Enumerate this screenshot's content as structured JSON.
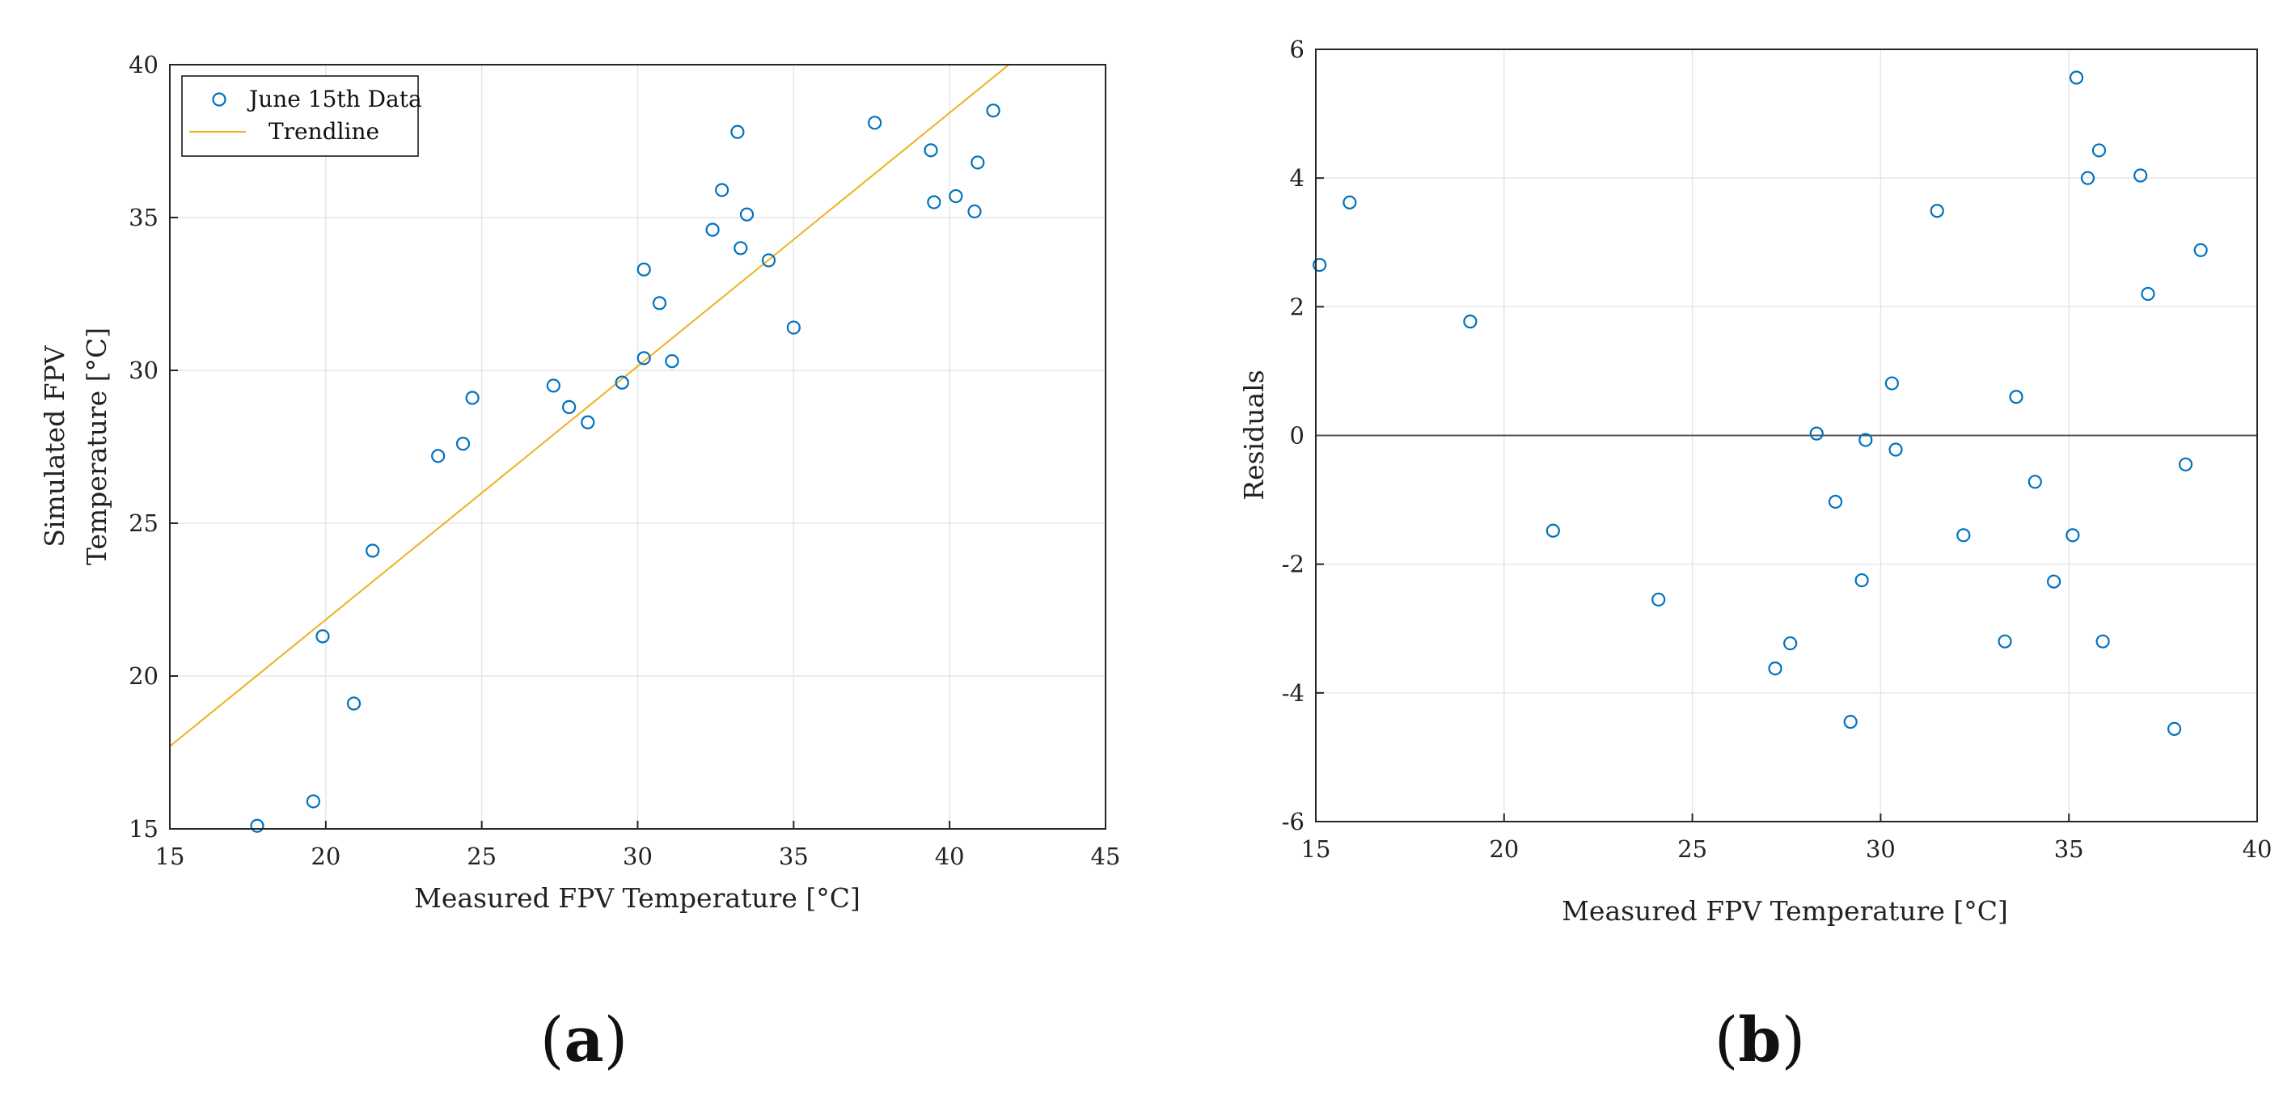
{
  "colors": {
    "marker": "#0072bd",
    "trendline": "#edb120",
    "zero_line": "#555555"
  },
  "chart_data": [
    {
      "type": "scatter",
      "panel_label": "a",
      "xlabel": "Measured FPV Temperature [°C]",
      "ylabel_lines": [
        "Simulated FPV",
        "Temperature [°C]"
      ],
      "xlim": [
        15,
        45
      ],
      "ylim": [
        15,
        40
      ],
      "xticks": [
        15,
        20,
        25,
        30,
        35,
        40,
        45
      ],
      "yticks": [
        15,
        20,
        25,
        30,
        35,
        40
      ],
      "grid": true,
      "legend_position": "top-left",
      "series": [
        {
          "name": "June 15th Data",
          "kind": "scatter",
          "points": [
            [
              17.8,
              15.1
            ],
            [
              19.6,
              15.9
            ],
            [
              19.9,
              21.3
            ],
            [
              20.9,
              19.1
            ],
            [
              21.5,
              24.1
            ],
            [
              23.6,
              27.2
            ],
            [
              24.4,
              27.6
            ],
            [
              24.7,
              29.1
            ],
            [
              27.3,
              29.5
            ],
            [
              27.8,
              28.8
            ],
            [
              28.4,
              28.3
            ],
            [
              29.5,
              29.6
            ],
            [
              30.2,
              33.3
            ],
            [
              30.2,
              30.4
            ],
            [
              30.7,
              32.2
            ],
            [
              31.1,
              30.3
            ],
            [
              32.4,
              34.6
            ],
            [
              32.7,
              35.9
            ],
            [
              33.2,
              37.8
            ],
            [
              33.3,
              34.0
            ],
            [
              33.5,
              35.1
            ],
            [
              34.2,
              33.6
            ],
            [
              35.0,
              31.4
            ],
            [
              37.6,
              38.1
            ],
            [
              39.4,
              37.2
            ],
            [
              39.5,
              35.5
            ],
            [
              40.2,
              35.7
            ],
            [
              40.8,
              35.2
            ],
            [
              40.9,
              36.8
            ],
            [
              41.4,
              38.5
            ]
          ]
        },
        {
          "name": "Trendline",
          "kind": "line",
          "points": [
            [
              15,
              17.7
            ],
            [
              41.9,
              40
            ]
          ]
        }
      ]
    },
    {
      "type": "scatter",
      "panel_label": "b",
      "xlabel": "Measured FPV Temperature [°C]",
      "ylabel": "Residuals",
      "xlim": [
        15,
        40
      ],
      "ylim": [
        -6,
        6
      ],
      "xticks": [
        15,
        20,
        25,
        30,
        35,
        40
      ],
      "yticks": [
        -6,
        -4,
        -2,
        0,
        2,
        4,
        6
      ],
      "grid": true,
      "zero_line": 0,
      "series": [
        {
          "name": "Residuals",
          "kind": "scatter",
          "points": [
            [
              15.1,
              2.65
            ],
            [
              15.9,
              3.62
            ],
            [
              19.1,
              1.77
            ],
            [
              21.3,
              -1.48
            ],
            [
              24.1,
              -2.55
            ],
            [
              27.2,
              -3.62
            ],
            [
              27.6,
              -3.23
            ],
            [
              28.3,
              0.03
            ],
            [
              28.8,
              -1.03
            ],
            [
              29.2,
              -4.45
            ],
            [
              29.5,
              -2.25
            ],
            [
              29.6,
              -0.07
            ],
            [
              30.3,
              0.81
            ],
            [
              30.4,
              -0.22
            ],
            [
              31.5,
              3.49
            ],
            [
              32.2,
              -1.55
            ],
            [
              33.3,
              -3.2
            ],
            [
              33.6,
              0.6
            ],
            [
              34.1,
              -0.72
            ],
            [
              34.6,
              -2.27
            ],
            [
              35.1,
              -1.55
            ],
            [
              35.2,
              5.56
            ],
            [
              35.5,
              4.0
            ],
            [
              35.8,
              4.43
            ],
            [
              35.9,
              -3.2
            ],
            [
              36.9,
              4.04
            ],
            [
              37.1,
              2.2
            ],
            [
              37.8,
              -4.56
            ],
            [
              38.1,
              -0.45
            ],
            [
              38.5,
              2.88
            ]
          ]
        }
      ]
    }
  ]
}
